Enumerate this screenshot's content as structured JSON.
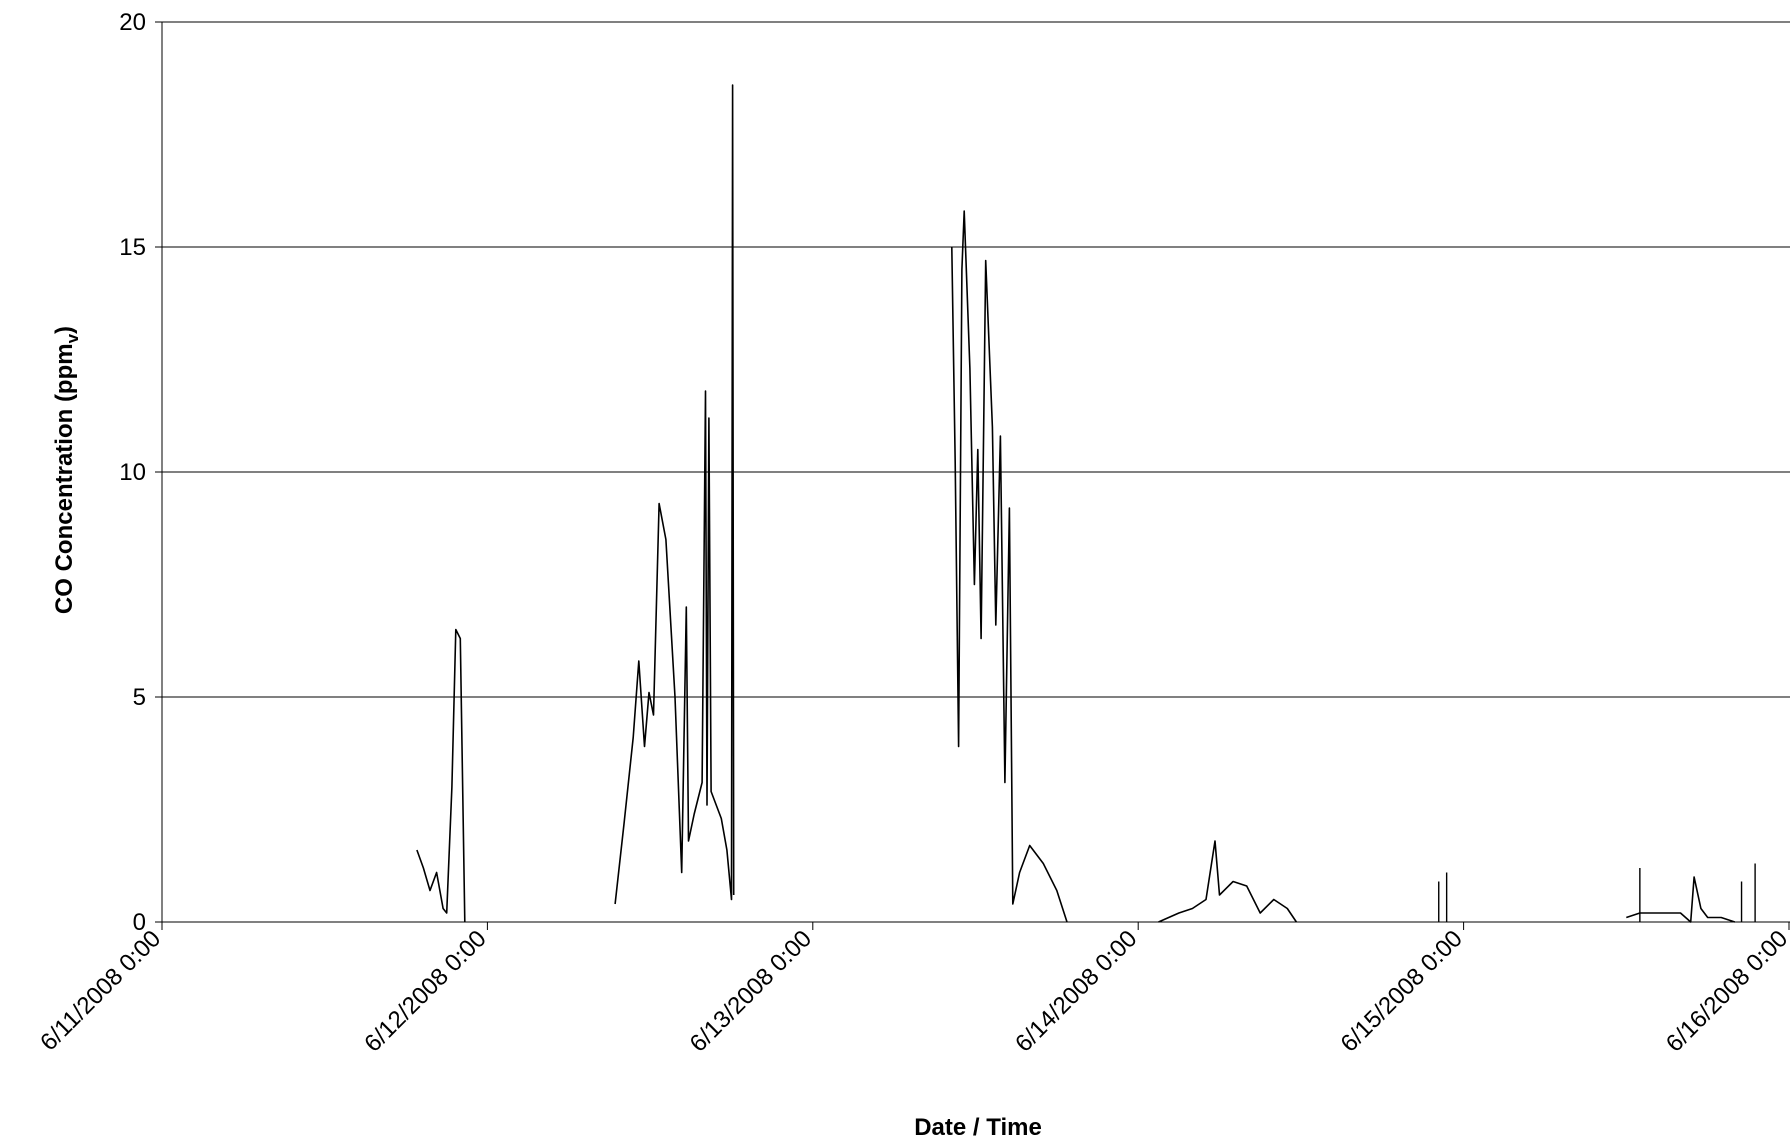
{
  "chart_data": {
    "type": "line",
    "title": "",
    "xlabel": "Date / Time",
    "ylabel": {
      "main": "CO Concentration (ppm",
      "subscript": "v",
      "close": ")"
    },
    "xlim": [
      "6/11/2008 0:00",
      "6/16/2008 0:00"
    ],
    "ylim": [
      0,
      20
    ],
    "grid": true,
    "legend": "none",
    "x_ticks": [
      "6/11/2008 0:00",
      "6/12/2008 0:00",
      "6/13/2008 0:00",
      "6/14/2008 0:00",
      "6/15/2008 0:00",
      "6/16/2008 0:00"
    ],
    "y_ticks": [
      "0",
      "5",
      "10",
      "15",
      "20"
    ],
    "series": [
      {
        "color": "#000000",
        "segments": [
          [
            [
              "6/11/2008 18:48",
              1.6
            ],
            [
              "6/11/2008 19:17",
              1.2
            ],
            [
              "6/11/2008 19:46",
              0.7
            ],
            [
              "6/11/2008 20:15",
              1.1
            ],
            [
              "6/11/2008 20:44",
              0.3
            ],
            [
              "6/11/2008 21:00",
              0.2
            ],
            [
              "6/11/2008 21:23",
              3.0
            ],
            [
              "6/11/2008 21:40",
              6.5
            ],
            [
              "6/11/2008 22:00",
              6.3
            ],
            [
              "6/11/2008 22:20",
              0.0
            ]
          ],
          [
            [
              "6/12/2008 9:25",
              0.4
            ],
            [
              "6/12/2008 10:05",
              2.2
            ],
            [
              "6/12/2008 10:45",
              4.1
            ],
            [
              "6/12/2008 11:10",
              5.8
            ],
            [
              "6/12/2008 11:35",
              3.9
            ],
            [
              "6/12/2008 11:55",
              5.1
            ],
            [
              "6/12/2008 12:15",
              4.6
            ],
            [
              "6/12/2008 12:40",
              9.3
            ],
            [
              "6/12/2008 13:10",
              8.5
            ],
            [
              "6/12/2008 13:50",
              5.0
            ],
            [
              "6/12/2008 14:20",
              1.1
            ],
            [
              "6/12/2008 14:40",
              7.0
            ],
            [
              "6/12/2008 14:50",
              1.8
            ],
            [
              "6/12/2008 15:15",
              2.4
            ],
            [
              "6/12/2008 15:50",
              3.1
            ],
            [
              "6/12/2008 16:05",
              11.8
            ],
            [
              "6/12/2008 16:12",
              2.6
            ],
            [
              "6/12/2008 16:20",
              11.2
            ],
            [
              "6/12/2008 16:30",
              2.9
            ],
            [
              "6/12/2008 17:15",
              2.3
            ],
            [
              "6/12/2008 17:40",
              1.6
            ],
            [
              "6/12/2008 18:00",
              0.5
            ],
            [
              "6/12/2008 18:05",
              18.6
            ],
            [
              "6/12/2008 18:10",
              0.6
            ]
          ],
          [
            [
              "6/13/2008 10:15",
              15.0
            ],
            [
              "6/13/2008 10:30",
              10.2
            ],
            [
              "6/13/2008 10:45",
              3.9
            ],
            [
              "6/13/2008 11:00",
              14.5
            ],
            [
              "6/13/2008 11:10",
              15.8
            ],
            [
              "6/13/2008 11:35",
              12.3
            ],
            [
              "6/13/2008 11:55",
              7.5
            ],
            [
              "6/13/2008 12:10",
              10.5
            ],
            [
              "6/13/2008 12:25",
              6.3
            ],
            [
              "6/13/2008 12:45",
              14.7
            ],
            [
              "6/13/2008 13:15",
              11.0
            ],
            [
              "6/13/2008 13:30",
              6.6
            ],
            [
              "6/13/2008 13:50",
              10.8
            ],
            [
              "6/13/2008 14:10",
              3.1
            ],
            [
              "6/13/2008 14:30",
              9.2
            ],
            [
              "6/13/2008 14:45",
              0.4
            ],
            [
              "6/13/2008 15:15",
              1.1
            ],
            [
              "6/13/2008 16:00",
              1.7
            ],
            [
              "6/13/2008 17:00",
              1.3
            ],
            [
              "6/13/2008 18:00",
              0.7
            ],
            [
              "6/13/2008 18:45",
              0.0
            ]
          ],
          [
            [
              "6/14/2008 1:30",
              0.0
            ],
            [
              "6/14/2008 3:00",
              0.2
            ],
            [
              "6/14/2008 4:00",
              0.3
            ],
            [
              "6/14/2008 5:00",
              0.5
            ],
            [
              "6/14/2008 5:40",
              1.8
            ],
            [
              "6/14/2008 6:00",
              0.6
            ],
            [
              "6/14/2008 7:00",
              0.9
            ],
            [
              "6/14/2008 8:00",
              0.8
            ],
            [
              "6/14/2008 9:00",
              0.2
            ],
            [
              "6/14/2008 10:00",
              0.5
            ],
            [
              "6/14/2008 11:00",
              0.3
            ],
            [
              "6/14/2008 11:40",
              0.0
            ]
          ],
          [
            [
              "6/15/2008 12:00",
              0.1
            ],
            [
              "6/15/2008 13:00",
              0.2
            ],
            [
              "6/15/2008 14:00",
              0.2
            ],
            [
              "6/15/2008 15:00",
              0.2
            ],
            [
              "6/15/2008 16:00",
              0.2
            ],
            [
              "6/15/2008 16:45",
              0.0
            ],
            [
              "6/15/2008 17:00",
              1.0
            ],
            [
              "6/15/2008 17:30",
              0.3
            ],
            [
              "6/15/2008 18:00",
              0.1
            ],
            [
              "6/15/2008 19:00",
              0.1
            ],
            [
              "6/15/2008 20:00",
              0.0
            ]
          ]
        ]
      }
    ],
    "spikes": [
      [
        "6/14/2008 22:10",
        0.9
      ],
      [
        "6/14/2008 22:45",
        1.1
      ],
      [
        "6/15/2008 13:00",
        1.2
      ],
      [
        "6/15/2008 20:30",
        0.9
      ],
      [
        "6/15/2008 21:30",
        1.3
      ]
    ]
  }
}
